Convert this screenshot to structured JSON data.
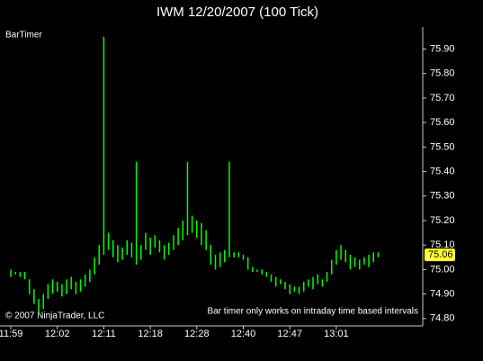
{
  "chart_data": {
    "type": "hilo",
    "title": "IWM  12/20/2007 (100 Tick)",
    "indicator_label": "BarTimer",
    "copyright": "© 2007 NinjaTrader, LLC",
    "annotation": "Bar timer only works on intraday time based intervals",
    "color": "#00ff00",
    "last_price": {
      "value": 75.06,
      "label": "75.06"
    },
    "categories": [
      "11:59",
      null,
      null,
      null,
      null,
      null,
      null,
      null,
      null,
      null,
      "12:02",
      null,
      null,
      null,
      null,
      null,
      null,
      null,
      null,
      null,
      "12:11",
      null,
      null,
      null,
      null,
      null,
      null,
      null,
      null,
      null,
      "12:18",
      null,
      null,
      null,
      null,
      null,
      null,
      null,
      null,
      null,
      "12:28",
      null,
      null,
      null,
      null,
      null,
      null,
      null,
      null,
      null,
      "12:40",
      null,
      null,
      null,
      null,
      null,
      null,
      null,
      null,
      null,
      "12:47",
      null,
      null,
      null,
      null,
      null,
      null,
      null,
      null,
      null,
      "13:01",
      null,
      null,
      null,
      null,
      null,
      null,
      null,
      null,
      null
    ],
    "low": [
      74.97,
      74.98,
      74.97,
      74.96,
      74.9,
      74.86,
      74.82,
      74.84,
      74.88,
      74.9,
      74.91,
      74.89,
      74.9,
      74.92,
      74.9,
      74.91,
      74.93,
      74.95,
      74.98,
      75.02,
      75.06,
      75.08,
      75.05,
      75.03,
      75.04,
      75.06,
      75.05,
      75.02,
      75.04,
      75.08,
      75.06,
      75.09,
      75.07,
      75.04,
      75.06,
      75.08,
      75.1,
      75.12,
      75.14,
      75.15,
      75.13,
      75.1,
      75.08,
      75.02,
      75.0,
      75.01,
      75.03,
      75.05,
      75.05,
      75.05,
      75.04,
      75.0,
      74.99,
      74.99,
      74.98,
      74.97,
      74.95,
      74.93,
      74.94,
      74.92,
      74.9,
      74.91,
      74.9,
      74.91,
      74.93,
      74.92,
      74.94,
      74.93,
      74.95,
      74.98,
      75.02,
      75.04,
      75.03,
      75.0,
      75.01,
      75.0,
      75.02,
      75.01,
      75.03,
      75.05
    ],
    "high": [
      75.0,
      74.99,
      74.99,
      74.99,
      74.96,
      74.92,
      74.88,
      74.9,
      74.94,
      74.96,
      74.95,
      74.94,
      74.96,
      74.97,
      74.95,
      74.96,
      74.98,
      75.0,
      75.05,
      75.1,
      75.95,
      75.15,
      75.12,
      75.1,
      75.09,
      75.12,
      75.11,
      75.44,
      75.1,
      75.15,
      75.13,
      75.14,
      75.12,
      75.1,
      75.11,
      75.14,
      75.17,
      75.2,
      75.44,
      75.22,
      75.2,
      75.19,
      75.16,
      75.1,
      75.06,
      75.07,
      75.08,
      75.44,
      75.07,
      75.07,
      75.06,
      75.05,
      75.01,
      75.0,
      75.0,
      74.99,
      74.98,
      74.97,
      74.96,
      74.95,
      74.94,
      74.93,
      74.93,
      74.95,
      74.96,
      74.97,
      74.98,
      74.96,
      74.99,
      75.04,
      75.08,
      75.1,
      75.08,
      75.06,
      75.05,
      75.04,
      75.05,
      75.06,
      75.07,
      75.07
    ],
    "ylim": [
      74.77,
      75.99
    ],
    "yticks": [
      {
        "value": 74.8,
        "label": "74.80"
      },
      {
        "value": 74.9,
        "label": "74.90"
      },
      {
        "value": 75.0,
        "label": "75.00"
      },
      {
        "value": 75.1,
        "label": "75.10"
      },
      {
        "value": 75.2,
        "label": "75.20"
      },
      {
        "value": 75.3,
        "label": "75.30"
      },
      {
        "value": 75.4,
        "label": "75.40"
      },
      {
        "value": 75.5,
        "label": "75.50"
      },
      {
        "value": 75.6,
        "label": "75.60"
      },
      {
        "value": 75.7,
        "label": "75.70"
      },
      {
        "value": 75.8,
        "label": "75.80"
      },
      {
        "value": 75.9,
        "label": "75.90"
      }
    ],
    "grid": false
  }
}
